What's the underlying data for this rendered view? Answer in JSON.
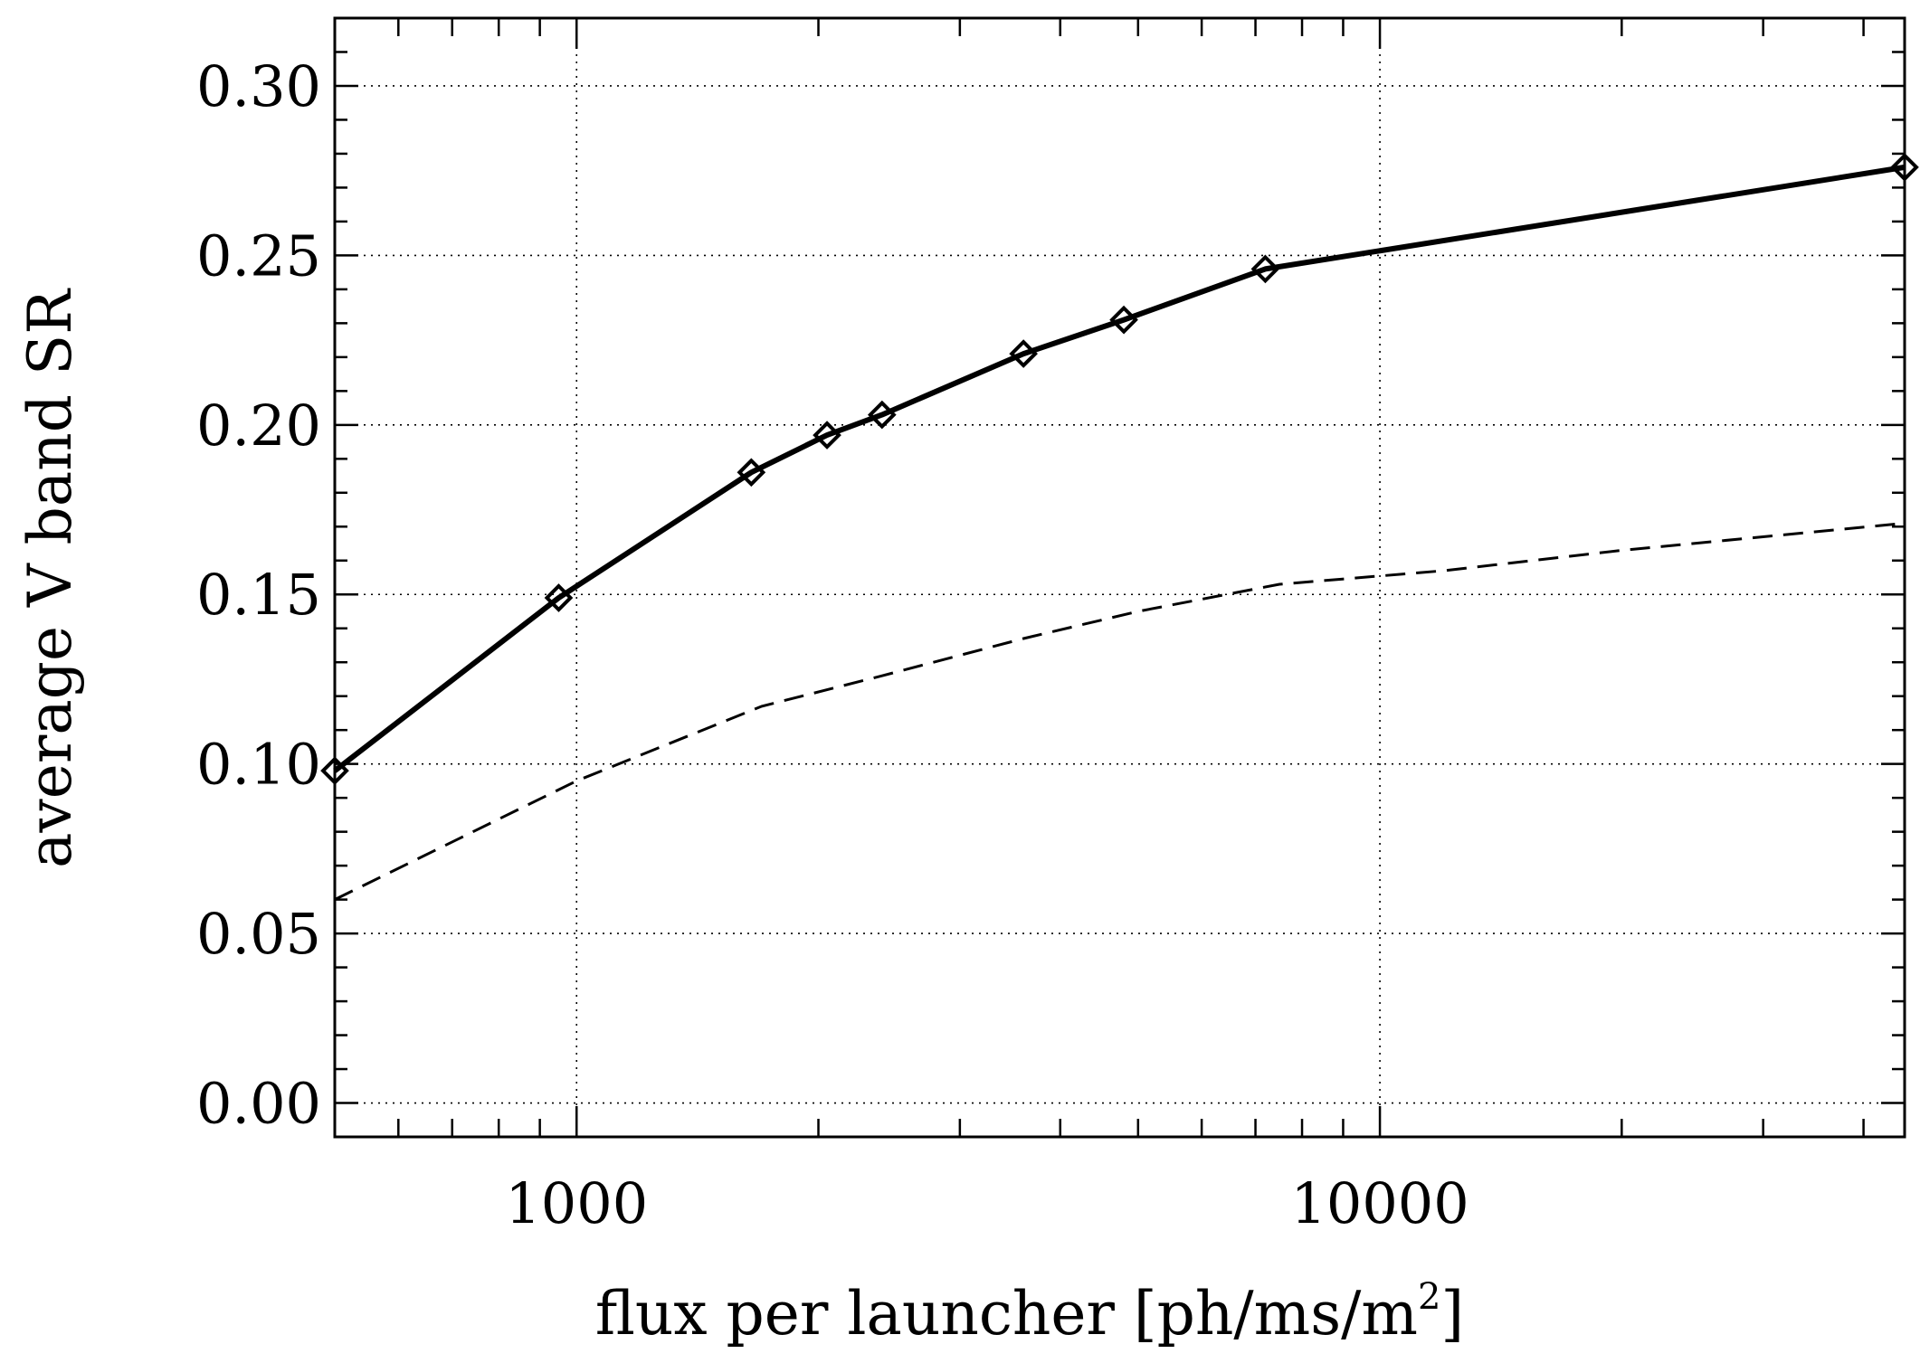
{
  "chart_data": {
    "type": "line",
    "xlabel": "flux per launcher [ph/ms/m",
    "xlabel_sup": "2",
    "xlabel_end": "]",
    "ylabel": "average V band SR",
    "xscale": "log",
    "xlim": [
      500,
      45000
    ],
    "ylim": [
      -0.01,
      0.32
    ],
    "x_ticks": [
      {
        "value": 1000,
        "label": "1000"
      },
      {
        "value": 10000,
        "label": "10000"
      }
    ],
    "y_ticks": [
      {
        "value": 0.0,
        "label": "0.00"
      },
      {
        "value": 0.05,
        "label": "0.05"
      },
      {
        "value": 0.1,
        "label": "0.10"
      },
      {
        "value": 0.15,
        "label": "0.15"
      },
      {
        "value": 0.2,
        "label": "0.20"
      },
      {
        "value": 0.25,
        "label": "0.25"
      },
      {
        "value": 0.3,
        "label": "0.30"
      }
    ],
    "grid": true,
    "series": [
      {
        "style": "solid",
        "marker": "diamond",
        "x": [
          500,
          950,
          1650,
          2050,
          2400,
          3600,
          4800,
          7200,
          45000
        ],
        "y": [
          0.098,
          0.149,
          0.186,
          0.197,
          0.203,
          0.221,
          0.231,
          0.246,
          0.276
        ]
      },
      {
        "style": "dashed",
        "marker": "none",
        "x": [
          500,
          1000,
          1700,
          2400,
          3600,
          5000,
          7500,
          12000,
          20000,
          45000
        ],
        "y": [
          0.06,
          0.095,
          0.117,
          0.126,
          0.137,
          0.145,
          0.153,
          0.157,
          0.163,
          0.171
        ]
      }
    ]
  }
}
